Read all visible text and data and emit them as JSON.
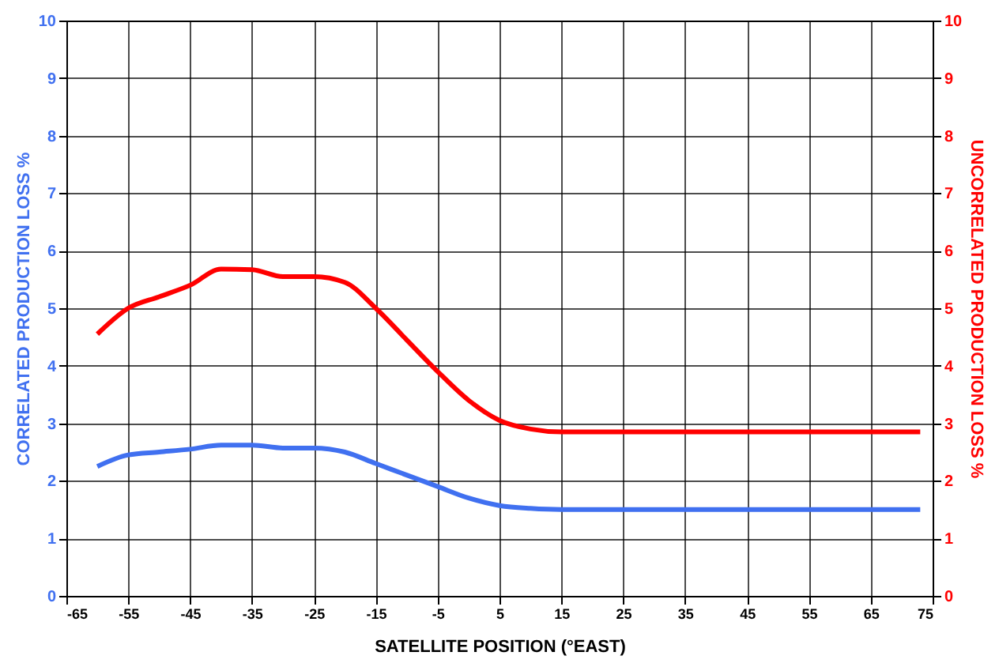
{
  "chart_data": {
    "type": "line",
    "xlabel": "SATELLITE POSITION (°EAST)",
    "ylabel": "CORRELATED PRODUCTION LOSS %",
    "y2label": "UNCORRELATED PRODUCTION LOSS %",
    "xlim": [
      -65,
      75
    ],
    "xticks": [
      -65,
      -55,
      -45,
      -35,
      -25,
      -15,
      -5,
      5,
      15,
      25,
      35,
      45,
      55,
      65,
      75
    ],
    "ylim": [
      0,
      10
    ],
    "yticks": [
      0,
      1,
      2,
      3,
      4,
      5,
      6,
      7,
      8,
      9,
      10
    ],
    "y2lim": [
      0,
      10
    ],
    "y2ticks": [
      0,
      1,
      2,
      3,
      4,
      5,
      6,
      7,
      8,
      9,
      10
    ],
    "grid": true,
    "marker": "none",
    "line_style": "solid",
    "x": [
      -60,
      -55,
      -50,
      -45,
      -40,
      -35,
      -30,
      -25,
      -20,
      -15,
      -10,
      -5,
      0,
      5,
      10,
      15,
      25,
      35,
      45,
      55,
      65,
      73
    ],
    "series": [
      {
        "color": "#4070f0",
        "values": [
          2.25,
          2.45,
          2.5,
          2.55,
          2.62,
          2.62,
          2.57,
          2.57,
          2.5,
          2.3,
          2.1,
          1.9,
          1.7,
          1.57,
          1.52,
          1.5,
          1.5,
          1.5,
          1.5,
          1.5,
          1.5,
          1.5
        ]
      },
      {
        "color": "#ff0000",
        "axis": "y2",
        "values": [
          4.55,
          5.0,
          5.2,
          5.4,
          5.68,
          5.67,
          5.55,
          5.55,
          5.45,
          5.0,
          4.45,
          3.9,
          3.4,
          3.05,
          2.9,
          2.85,
          2.85,
          2.85,
          2.85,
          2.85,
          2.85,
          2.85
        ]
      }
    ]
  }
}
